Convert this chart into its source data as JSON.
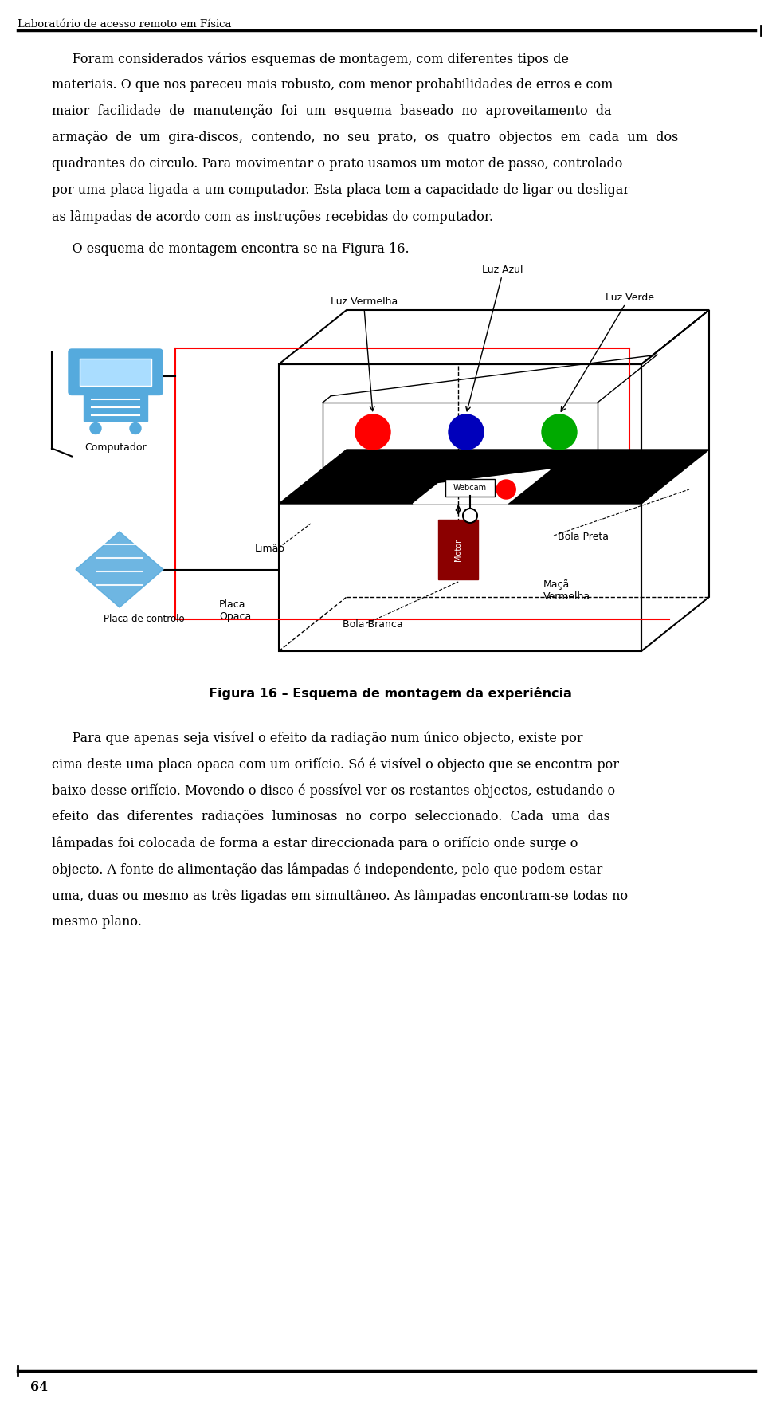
{
  "bg_color": "#ffffff",
  "header_text": "Laboratório de acesso remoto em Física",
  "page_number": "64",
  "paragraph1_lines": [
    "     Foram considerados vários esquemas de montagem, com diferentes tipos de",
    "materiais. O que nos pareceu mais robusto, com menor probabilidades de erros e com",
    "maior  facilidade  de  manutenção  foi  um  esquema  baseado  no  aproveitamento  da",
    "armação  de  um  gira-discos,  contendo,  no  seu  prato,  os  quatro  objectos  em  cada  um  dos",
    "quadrantes do circulo. Para movimentar o prato usamos um motor de passo, controlado",
    "por uma placa ligada a um computador. Esta placa tem a capacidade de ligar ou desligar",
    "as lâmpadas de acordo com as instruções recebidas do computador."
  ],
  "sentence2": "     O esquema de montagem encontra-se na Figura 16.",
  "figure_caption": "Figura 16 – Esquema de montagem da experiência",
  "paragraph3_lines": [
    "     Para que apenas seja visível o efeito da radiação num único objecto, existe por",
    "cima deste uma placa opaca com um orifício. Só é visível o objecto que se encontra por",
    "baixo desse orifício. Movendo o disco é possível ver os restantes objectos, estudando o",
    "efeito  das  diferentes  radiações  luminosas  no  corpo  seleccionado.  Cada  uma  das",
    "lâmpadas foi colocada de forma a estar direccionada para o orifício onde surge o",
    "objecto. A fonte de alimentação das lâmpadas é independente, pelo que podem estar",
    "uma, duas ou mesmo as três ligadas em simultâneo. As lâmpadas encontram-se todas no",
    "mesmo plano."
  ],
  "label_luz_vermelha": "Luz Vermelha",
  "label_luz_azul": "Luz Azul",
  "label_luz_verde": "Luz Verde",
  "label_computador": "Computador",
  "label_placa_controlo": "Placa de controlo",
  "label_webcam": "Webcam",
  "label_limao": "Limão",
  "label_placa_opaca": "Placa\nOpaca",
  "label_bola_branca": "Bola Branca",
  "label_bola_preta": "Bola Preta",
  "label_maca_vermelha": "Maçã\nVermelha",
  "color_red": "#ff0000",
  "color_blue": "#0000bb",
  "color_green": "#00aa00",
  "color_dark_red": "#8b0000",
  "color_computer_blue": "#55aadd"
}
